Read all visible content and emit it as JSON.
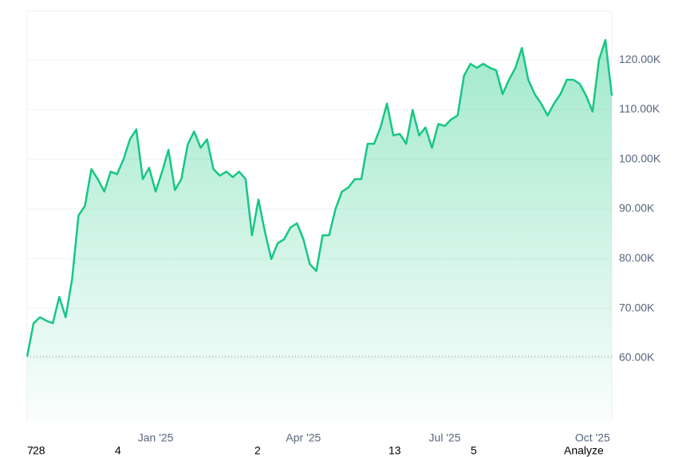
{
  "chart_data": {
    "type": "line",
    "color": "#16c784",
    "categories": [
      null,
      null,
      null,
      null,
      null,
      null,
      null,
      null,
      null,
      null,
      null,
      null,
      null,
      null,
      null,
      null,
      null,
      null,
      null,
      null,
      "Jan '25",
      null,
      null,
      null,
      null,
      null,
      null,
      null,
      null,
      null,
      null,
      null,
      null,
      null,
      null,
      null,
      null,
      null,
      null,
      null,
      null,
      null,
      null,
      "Apr '25",
      null,
      null,
      null,
      null,
      null,
      null,
      null,
      null,
      null,
      null,
      null,
      null,
      null,
      null,
      null,
      null,
      null,
      null,
      null,
      null,
      null,
      "Jul '25",
      null,
      null,
      null,
      null,
      null,
      null,
      null,
      null,
      null,
      null,
      null,
      null,
      null,
      null,
      null,
      null,
      null,
      null,
      null,
      null,
      null,
      null,
      "Oct '25",
      null,
      null,
      null
    ],
    "values": [
      60300,
      67000,
      68200,
      67500,
      67000,
      72300,
      68200,
      75900,
      88700,
      90600,
      98000,
      96000,
      93500,
      97500,
      97000,
      100000,
      104000,
      106000,
      96000,
      98300,
      93500,
      97500,
      101900,
      93800,
      96000,
      103000,
      105600,
      102300,
      104000,
      98000,
      96700,
      97500,
      96400,
      97500,
      96000,
      84700,
      91900,
      85500,
      79900,
      83100,
      83900,
      86300,
      87100,
      83900,
      78900,
      77500,
      84700,
      84700,
      90000,
      93500,
      94300,
      96000,
      96000,
      103100,
      103100,
      106400,
      111200,
      104800,
      105100,
      103100,
      109900,
      104800,
      106400,
      102300,
      107100,
      106700,
      108000,
      108800,
      116800,
      119200,
      118400,
      119200,
      118400,
      117900,
      113100,
      116000,
      118400,
      122400,
      116000,
      113100,
      111200,
      108800,
      111200,
      113100,
      116000,
      116000,
      115200,
      112800,
      109600,
      120000,
      124000,
      112800
    ],
    "ylim": [
      47300,
      129800
    ],
    "yticks": [
      {
        "value": 60000,
        "label": "60.00K"
      },
      {
        "value": 70000,
        "label": "70.00K"
      },
      {
        "value": 80000,
        "label": "80.00K"
      },
      {
        "value": 90000,
        "label": "90.00K"
      },
      {
        "value": 100000,
        "label": "100.00K"
      },
      {
        "value": 110000,
        "label": "110.00K"
      },
      {
        "value": 120000,
        "label": "120.00K"
      }
    ],
    "grid": true
  },
  "footer": [
    "7",
    "28",
    "4",
    "2",
    "13",
    "5",
    "Analyze"
  ]
}
